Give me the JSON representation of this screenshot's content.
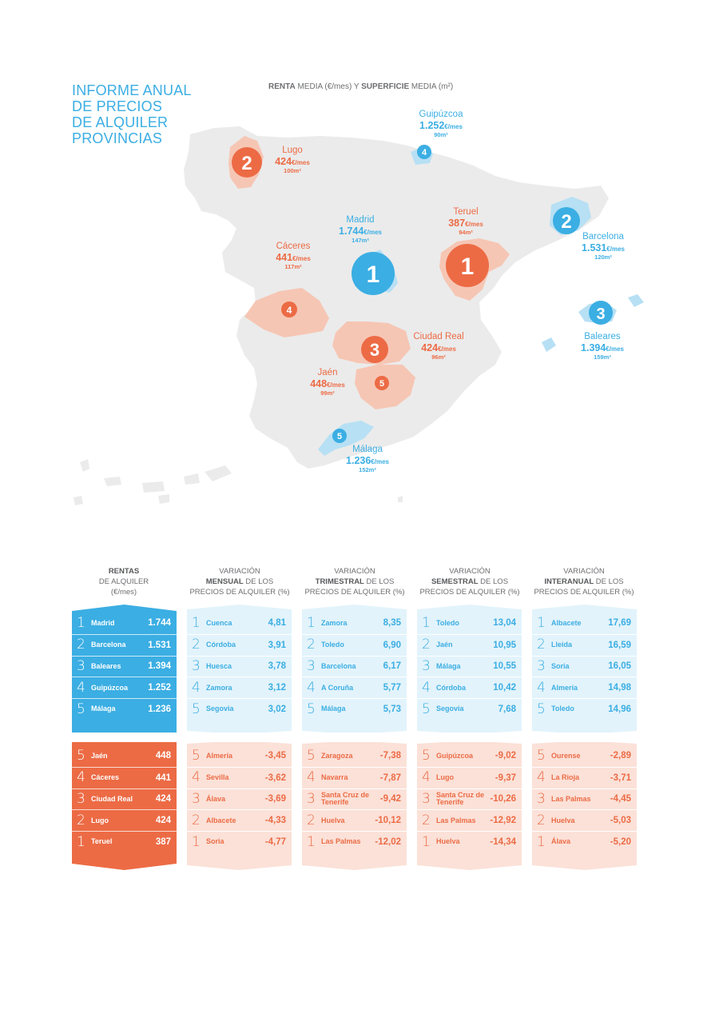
{
  "title": {
    "lines": [
      "INFORME ANUAL",
      "DE PRECIOS",
      "DE ALQUILER",
      "PROVINCIAS"
    ]
  },
  "map_subtitle": {
    "bold1": "RENTA",
    "text1": " MEDIA (€/mes) Y ",
    "bold2": "SUPERFICIE",
    "text2": " MEDIA (m²)"
  },
  "colors": {
    "blue": "#3baee3",
    "orange": "#ec6b45",
    "light_blue": "#e2f3fb",
    "light_orange": "#fbe1d8",
    "map_gray": "#ebebeb"
  },
  "map_labels": {
    "gipuzkoa": {
      "rank": "4",
      "name": "Guipúzcoa",
      "price": "1.252",
      "unit": "€/mes",
      "size": "90m²"
    },
    "lugo": {
      "rank": "2",
      "name": "Lugo",
      "price": "424",
      "unit": "€/mes",
      "size": "100m²"
    },
    "madrid": {
      "rank": "1",
      "name": "Madrid",
      "price": "1.744",
      "unit": "€/mes",
      "size": "147m²"
    },
    "teruel": {
      "rank": "1",
      "name": "Teruel",
      "price": "387",
      "unit": "€/mes",
      "size": "94m²"
    },
    "barcelona": {
      "rank": "2",
      "name": "Barcelona",
      "price": "1.531",
      "unit": "€/mes",
      "size": "120m²"
    },
    "caceres": {
      "rank": "4",
      "name": "Cáceres",
      "price": "441",
      "unit": "€/mes",
      "size": "117m²"
    },
    "ciudad_real": {
      "rank": "3",
      "name": "Ciudad Real",
      "price": "424",
      "unit": "€/mes",
      "size": "96m²"
    },
    "baleares": {
      "rank": "3",
      "name": "Baleares",
      "price": "1.394",
      "unit": "€/mes",
      "size": "159m²"
    },
    "jaen": {
      "rank": "5",
      "name": "Jaén",
      "price": "448",
      "unit": "€/mes",
      "size": "99m²"
    },
    "malaga": {
      "rank": "5",
      "name": "Málaga",
      "price": "1.236",
      "unit": "€/mes",
      "size": "152m²"
    }
  },
  "headers": [
    {
      "l1": "RENTAS",
      "l2": "DE ALQUILER",
      "l3": "(€/mes)",
      "bold": "",
      "pre": ""
    },
    {
      "pre": "VARIACIÓN",
      "bold": "MENSUAL",
      "rest": " DE LOS",
      "l3": "PRECIOS DE ALQUILER (%)"
    },
    {
      "pre": "VARIACIÓN",
      "bold": "TRIMESTRAL",
      "rest": " DE LOS",
      "l3": "PRECIOS DE ALQUILER (%)"
    },
    {
      "pre": "VARIACIÓN",
      "bold": "SEMESTRAL",
      "rest": " DE LOS",
      "l3": "PRECIOS DE ALQUILER (%)"
    },
    {
      "pre": "VARIACIÓN",
      "bold": "INTERANUAL",
      "rest": " DE LOS",
      "l3": "PRECIOS DE ALQUILER (%)"
    }
  ],
  "top_tables": [
    [
      {
        "rank": "1",
        "name": "Madrid",
        "value": "1.744"
      },
      {
        "rank": "2",
        "name": "Barcelona",
        "value": "1.531"
      },
      {
        "rank": "3",
        "name": "Baleares",
        "value": "1.394"
      },
      {
        "rank": "4",
        "name": "Guipúzcoa",
        "value": "1.252"
      },
      {
        "rank": "5",
        "name": "Málaga",
        "value": "1.236"
      }
    ],
    [
      {
        "rank": "1",
        "name": "Cuenca",
        "value": "4,81"
      },
      {
        "rank": "2",
        "name": "Córdoba",
        "value": "3,91"
      },
      {
        "rank": "3",
        "name": "Huesca",
        "value": "3,78"
      },
      {
        "rank": "4",
        "name": "Zamora",
        "value": "3,12"
      },
      {
        "rank": "5",
        "name": "Segovia",
        "value": "3,02"
      }
    ],
    [
      {
        "rank": "1",
        "name": "Zamora",
        "value": "8,35"
      },
      {
        "rank": "2",
        "name": "Toledo",
        "value": "6,90"
      },
      {
        "rank": "3",
        "name": "Barcelona",
        "value": "6,17"
      },
      {
        "rank": "4",
        "name": "A Coruña",
        "value": "5,77"
      },
      {
        "rank": "5",
        "name": "Málaga",
        "value": "5,73"
      }
    ],
    [
      {
        "rank": "1",
        "name": "Toledo",
        "value": "13,04"
      },
      {
        "rank": "2",
        "name": "Jaén",
        "value": "10,95"
      },
      {
        "rank": "3",
        "name": "Málaga",
        "value": "10,55"
      },
      {
        "rank": "4",
        "name": "Córdoba",
        "value": "10,42"
      },
      {
        "rank": "5",
        "name": "Segovia",
        "value": "7,68"
      }
    ],
    [
      {
        "rank": "1",
        "name": "Albacete",
        "value": "17,69"
      },
      {
        "rank": "2",
        "name": "Lleida",
        "value": "16,59"
      },
      {
        "rank": "3",
        "name": "Soria",
        "value": "16,05"
      },
      {
        "rank": "4",
        "name": "Almería",
        "value": "14,98"
      },
      {
        "rank": "5",
        "name": "Toledo",
        "value": "14,96"
      }
    ]
  ],
  "bottom_tables": [
    [
      {
        "rank": "5",
        "name": "Jaén",
        "value": "448"
      },
      {
        "rank": "4",
        "name": "Cáceres",
        "value": "441"
      },
      {
        "rank": "3",
        "name": "Ciudad Real",
        "value": "424"
      },
      {
        "rank": "2",
        "name": "Lugo",
        "value": "424"
      },
      {
        "rank": "1",
        "name": "Teruel",
        "value": "387"
      }
    ],
    [
      {
        "rank": "5",
        "name": "Almería",
        "value": "-3,45"
      },
      {
        "rank": "4",
        "name": "Sevilla",
        "value": "-3,62"
      },
      {
        "rank": "3",
        "name": "Álava",
        "value": "-3,69"
      },
      {
        "rank": "2",
        "name": "Albacete",
        "value": "-4,33"
      },
      {
        "rank": "1",
        "name": "Soria",
        "value": "-4,77"
      }
    ],
    [
      {
        "rank": "5",
        "name": "Zaragoza",
        "value": "-7,38"
      },
      {
        "rank": "4",
        "name": "Navarra",
        "value": "-7,87"
      },
      {
        "rank": "3",
        "name": "Santa Cruz de Tenerife",
        "value": "-9,42"
      },
      {
        "rank": "2",
        "name": "Huelva",
        "value": "-10,12"
      },
      {
        "rank": "1",
        "name": "Las Palmas",
        "value": "-12,02"
      }
    ],
    [
      {
        "rank": "5",
        "name": "Guipúzcoa",
        "value": "-9,02"
      },
      {
        "rank": "4",
        "name": "Lugo",
        "value": "-9,37"
      },
      {
        "rank": "3",
        "name": "Santa Cruz de Tenerife",
        "value": "-10,26"
      },
      {
        "rank": "2",
        "name": "Las Palmas",
        "value": "-12,92"
      },
      {
        "rank": "1",
        "name": "Huelva",
        "value": "-14,34"
      }
    ],
    [
      {
        "rank": "5",
        "name": "Ourense",
        "value": "-2,89"
      },
      {
        "rank": "4",
        "name": "La Rioja",
        "value": "-3,71"
      },
      {
        "rank": "3",
        "name": "Las Palmas",
        "value": "-4,45"
      },
      {
        "rank": "2",
        "name": "Huelva",
        "value": "-5,03"
      },
      {
        "rank": "1",
        "name": "Álava",
        "value": "-5,20"
      }
    ]
  ]
}
